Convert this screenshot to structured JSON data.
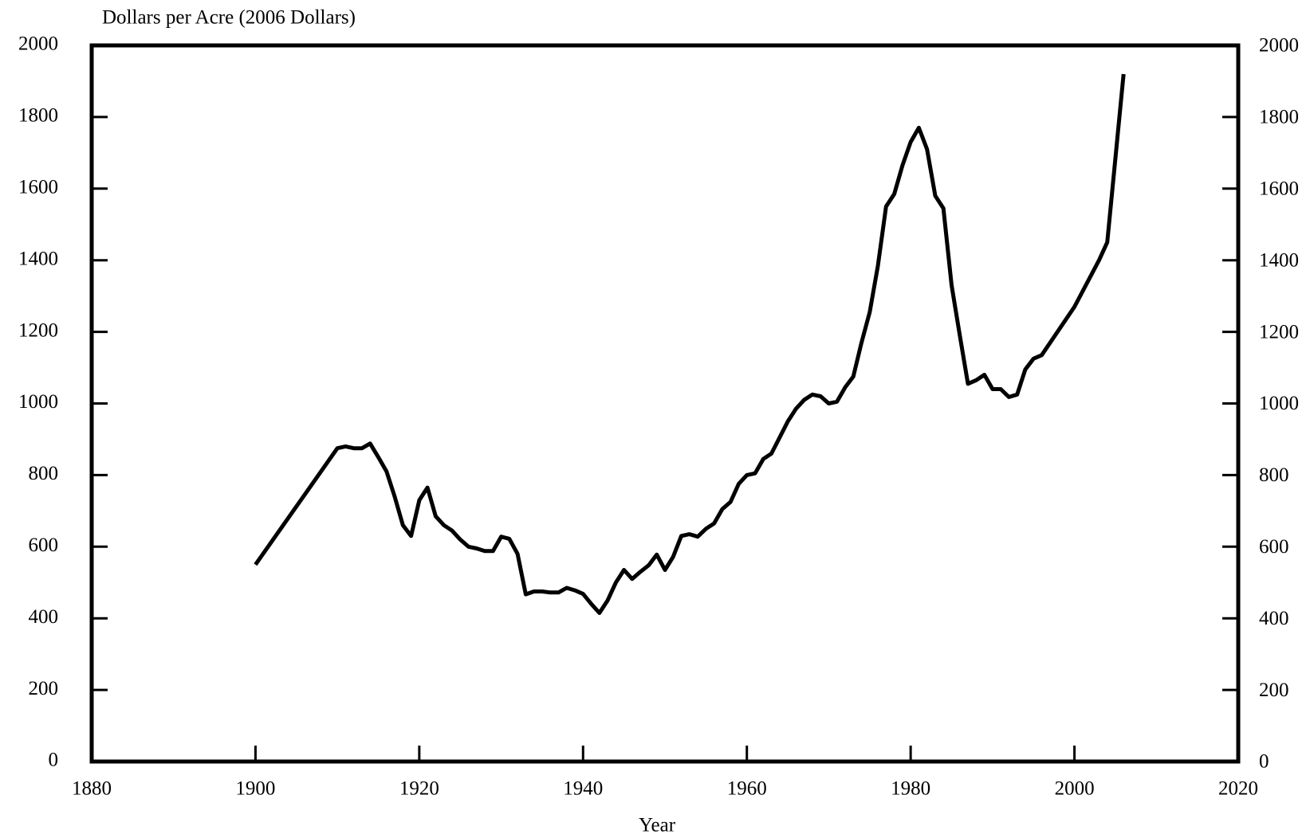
{
  "chart_data": {
    "type": "line",
    "title": "Dollars per Acre (2006 Dollars)",
    "x_label": "Year",
    "color": "#000000",
    "x": [
      1900,
      1910,
      1911,
      1912,
      1913,
      1914,
      1915,
      1916,
      1917,
      1918,
      1919,
      1920,
      1921,
      1922,
      1923,
      1924,
      1925,
      1926,
      1927,
      1928,
      1929,
      1930,
      1931,
      1932,
      1933,
      1934,
      1935,
      1936,
      1937,
      1938,
      1939,
      1940,
      1941,
      1942,
      1943,
      1944,
      1945,
      1946,
      1947,
      1948,
      1949,
      1950,
      1951,
      1952,
      1953,
      1954,
      1955,
      1956,
      1957,
      1958,
      1959,
      1960,
      1961,
      1962,
      1963,
      1964,
      1965,
      1966,
      1967,
      1968,
      1969,
      1970,
      1971,
      1972,
      1973,
      1974,
      1975,
      1976,
      1977,
      1978,
      1979,
      1980,
      1981,
      1982,
      1983,
      1984,
      1985,
      1986,
      1987,
      1988,
      1989,
      1990,
      1991,
      1992,
      1993,
      1994,
      1995,
      1996,
      2000,
      2003,
      2004,
      2006
    ],
    "values": [
      550,
      875,
      880,
      875,
      875,
      888,
      850,
      810,
      740,
      660,
      630,
      730,
      765,
      685,
      660,
      645,
      620,
      600,
      595,
      588,
      588,
      628,
      622,
      580,
      467,
      475,
      475,
      472,
      472,
      485,
      478,
      468,
      440,
      415,
      450,
      500,
      535,
      510,
      530,
      548,
      578,
      535,
      572,
      630,
      635,
      628,
      650,
      665,
      705,
      725,
      775,
      800,
      805,
      845,
      860,
      905,
      950,
      985,
      1010,
      1025,
      1020,
      1000,
      1005,
      1045,
      1075,
      1170,
      1255,
      1385,
      1550,
      1585,
      1665,
      1730,
      1770,
      1710,
      1580,
      1545,
      1330,
      1190,
      1055,
      1065,
      1080,
      1040,
      1040,
      1018,
      1025,
      1095,
      1125,
      1135,
      1270,
      1400,
      1450,
      1920
    ],
    "xlim": [
      1880,
      2020
    ],
    "xticks": [
      1880,
      1900,
      1920,
      1940,
      1960,
      1980,
      2000,
      2020
    ],
    "ylim": [
      0,
      2000
    ],
    "yticks": [
      0,
      200,
      400,
      600,
      800,
      1000,
      1200,
      1400,
      1600,
      1800,
      2000
    ],
    "y2lim": [
      0,
      2000
    ],
    "y2ticks": [
      0,
      200,
      400,
      600,
      800,
      1000,
      1200,
      1400,
      1600,
      1800,
      2000
    ]
  }
}
